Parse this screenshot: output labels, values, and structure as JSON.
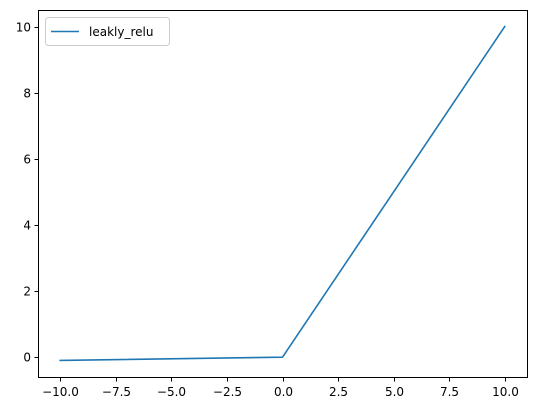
{
  "chart_data": {
    "type": "line",
    "title": "",
    "xlabel": "",
    "ylabel": "",
    "xlim": [
      -11,
      11
    ],
    "ylim": [
      -0.6,
      10.5
    ],
    "grid": false,
    "legend": {
      "position": "top-left",
      "entries": [
        "leakly_relu"
      ]
    },
    "x_ticks": [
      -10.0,
      -7.5,
      -5.0,
      -2.5,
      0.0,
      2.5,
      5.0,
      7.5,
      10.0
    ],
    "x_tick_labels": [
      "−10.0",
      "−7.5",
      "−5.0",
      "−2.5",
      "0.0",
      "2.5",
      "5.0",
      "7.5",
      "10.0"
    ],
    "y_ticks": [
      0,
      2,
      4,
      6,
      8,
      10
    ],
    "y_tick_labels": [
      "0",
      "2",
      "4",
      "6",
      "8",
      "10"
    ],
    "series": [
      {
        "name": "leakly_relu",
        "color": "#1f77b4",
        "x": [
          -10,
          0,
          10
        ],
        "y": [
          -0.1,
          0,
          10
        ]
      }
    ]
  }
}
